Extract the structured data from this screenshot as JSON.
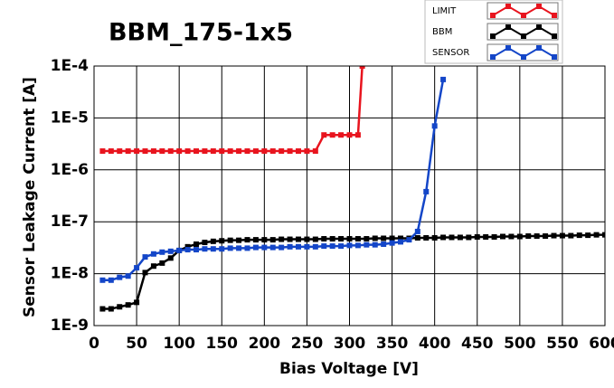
{
  "chart_data": {
    "type": "line",
    "title": "BBM_175-1x5",
    "x_label": "Bias Voltage [V]",
    "y_label": "Sensor Leakage Current [A]",
    "log_y": true,
    "grid": true,
    "legend": "top-right",
    "xlim": [
      0,
      600
    ],
    "xticks": [
      0,
      50,
      100,
      150,
      200,
      250,
      300,
      350,
      400,
      450,
      500,
      550,
      600
    ],
    "ylim": [
      1e-09,
      0.0001
    ],
    "yticks": [
      {
        "value": 1e-09,
        "label": "1E-9"
      },
      {
        "value": 1e-08,
        "label": "1E-8"
      },
      {
        "value": 1e-07,
        "label": "1E-7"
      },
      {
        "value": 1e-06,
        "label": "1E-6"
      },
      {
        "value": 1e-05,
        "label": "1E-5"
      },
      {
        "value": 0.0001,
        "label": "1E-4"
      }
    ],
    "series": [
      {
        "name": "LIMIT",
        "color": "#e8141e",
        "x": [
          10,
          20,
          30,
          40,
          50,
          60,
          70,
          80,
          90,
          100,
          110,
          120,
          130,
          140,
          150,
          160,
          170,
          180,
          190,
          200,
          210,
          220,
          230,
          240,
          250,
          260,
          270,
          280,
          290,
          300,
          310,
          315
        ],
        "values": [
          2.3e-06,
          2.3e-06,
          2.3e-06,
          2.3e-06,
          2.3e-06,
          2.3e-06,
          2.3e-06,
          2.3e-06,
          2.3e-06,
          2.3e-06,
          2.3e-06,
          2.3e-06,
          2.3e-06,
          2.3e-06,
          2.3e-06,
          2.3e-06,
          2.3e-06,
          2.3e-06,
          2.3e-06,
          2.3e-06,
          2.3e-06,
          2.3e-06,
          2.3e-06,
          2.3e-06,
          2.3e-06,
          2.3e-06,
          4.7e-06,
          4.7e-06,
          4.7e-06,
          4.7e-06,
          4.7e-06,
          0.0001
        ]
      },
      {
        "name": "BBM",
        "color": "#000000",
        "x": [
          10,
          20,
          30,
          40,
          50,
          60,
          70,
          80,
          90,
          100,
          110,
          120,
          130,
          140,
          150,
          160,
          170,
          180,
          190,
          200,
          210,
          220,
          230,
          240,
          250,
          260,
          270,
          280,
          290,
          300,
          310,
          320,
          330,
          340,
          350,
          360,
          370,
          380,
          390,
          400,
          410,
          420,
          430,
          440,
          450,
          460,
          470,
          480,
          490,
          500,
          510,
          520,
          530,
          540,
          550,
          560,
          570,
          580,
          590,
          600
        ],
        "values": [
          2.1e-09,
          2.1e-09,
          2.3e-09,
          2.5e-09,
          2.8e-09,
          1.05e-08,
          1.4e-08,
          1.6e-08,
          2e-08,
          2.8e-08,
          3.3e-08,
          3.7e-08,
          4e-08,
          4.2e-08,
          4.3e-08,
          4.4e-08,
          4.4e-08,
          4.5e-08,
          4.5e-08,
          4.5e-08,
          4.5e-08,
          4.6e-08,
          4.6e-08,
          4.6e-08,
          4.6e-08,
          4.6e-08,
          4.7e-08,
          4.7e-08,
          4.7e-08,
          4.7e-08,
          4.7e-08,
          4.7e-08,
          4.8e-08,
          4.8e-08,
          4.8e-08,
          4.8e-08,
          4.8e-08,
          4.9e-08,
          4.9e-08,
          4.9e-08,
          5e-08,
          5e-08,
          5e-08,
          5e-08,
          5.1e-08,
          5.1e-08,
          5.1e-08,
          5.2e-08,
          5.2e-08,
          5.2e-08,
          5.3e-08,
          5.3e-08,
          5.3e-08,
          5.4e-08,
          5.4e-08,
          5.4e-08,
          5.5e-08,
          5.5e-08,
          5.6e-08,
          5.6e-08
        ]
      },
      {
        "name": "SENSOR",
        "color": "#1446c8",
        "x": [
          10,
          20,
          30,
          40,
          50,
          60,
          70,
          80,
          90,
          100,
          110,
          120,
          130,
          140,
          150,
          160,
          170,
          180,
          190,
          200,
          210,
          220,
          230,
          240,
          250,
          260,
          270,
          280,
          290,
          300,
          310,
          320,
          330,
          340,
          350,
          360,
          370,
          380,
          390,
          400,
          410
        ],
        "values": [
          7.5e-09,
          7.5e-09,
          8.5e-09,
          9e-09,
          1.3e-08,
          2.1e-08,
          2.4e-08,
          2.6e-08,
          2.7e-08,
          2.8e-08,
          2.9e-08,
          2.9e-08,
          3e-08,
          3e-08,
          3e-08,
          3.1e-08,
          3.1e-08,
          3.1e-08,
          3.2e-08,
          3.2e-08,
          3.2e-08,
          3.2e-08,
          3.3e-08,
          3.3e-08,
          3.3e-08,
          3.3e-08,
          3.4e-08,
          3.4e-08,
          3.4e-08,
          3.5e-08,
          3.5e-08,
          3.6e-08,
          3.6e-08,
          3.7e-08,
          3.9e-08,
          4.1e-08,
          4.5e-08,
          6.5e-08,
          3.8e-07,
          7e-06,
          5.5e-05
        ]
      }
    ]
  }
}
